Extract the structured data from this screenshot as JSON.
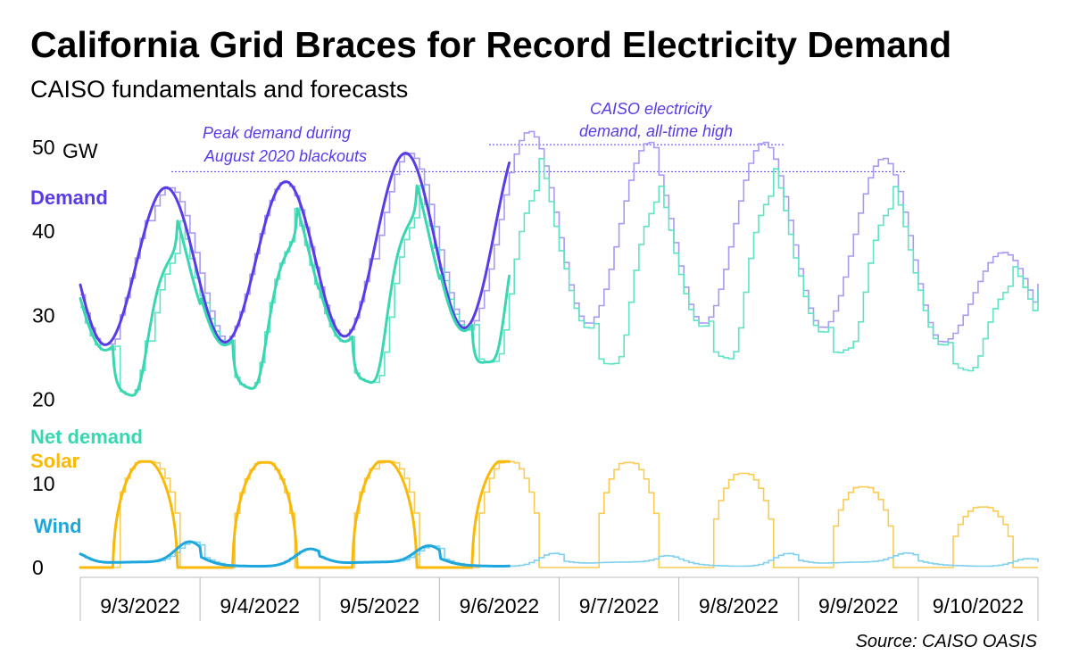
{
  "header": {
    "title": "California Grid Braces for Record Electricity Demand",
    "subtitle": "CAISO fundamentals and forecasts"
  },
  "source": "Source: CAISO OASIS",
  "annotations": {
    "blackout_line1": "Peak demand during",
    "blackout_line2": "August 2020 blackouts",
    "alltime_line1": "CAISO electricity",
    "alltime_line2": "demand, all-time high"
  },
  "chart_data": {
    "type": "line",
    "title": "California Grid Braces for Record Electricity Demand",
    "subtitle": "CAISO fundamentals and forecasts",
    "ylabel": "GW",
    "ylim": [
      0,
      52
    ],
    "yticks": [
      {
        "value": 50,
        "label": "50"
      },
      {
        "value": 40,
        "label": "40"
      },
      {
        "value": 30,
        "label": "30"
      },
      {
        "value": 20,
        "label": "20"
      },
      {
        "value": 10,
        "label": "10"
      },
      {
        "value": 0,
        "label": "0"
      }
    ],
    "y_unit_label": "GW",
    "xlim": [
      "9/3/2022",
      "9/11/2022"
    ],
    "categories": [
      "9/3/2022",
      "9/4/2022",
      "9/5/2022",
      "9/6/2022",
      "9/7/2022",
      "9/8/2022",
      "9/9/2022",
      "9/10/2022"
    ],
    "reference_lines": [
      {
        "name": "Peak demand during August 2020 blackouts",
        "value": 47.1
      },
      {
        "name": "CAISO electricity demand, all-time high",
        "value": 50.3
      }
    ],
    "actuals_through": "9/6/2022 14:00",
    "daily": [
      {
        "date": "9/3/2022",
        "demand_min": 26.5,
        "demand_peak": 45.2,
        "net_min": 18.5,
        "net_peak": 41.0,
        "solar_peak": 12.6,
        "wind_peak": 3.0
      },
      {
        "date": "9/4/2022",
        "demand_min": 26.8,
        "demand_peak": 45.9,
        "net_min": 19.2,
        "net_peak": 41.0,
        "solar_peak": 12.5,
        "wind_peak": 2.3
      },
      {
        "date": "9/5/2022",
        "demand_min": 27.5,
        "demand_peak": 49.3,
        "net_min": 19.6,
        "net_peak": 47.0,
        "solar_peak": 12.6,
        "wind_peak": 2.5
      },
      {
        "date": "9/6/2022",
        "demand_min": 28.5,
        "demand_peak": 51.9,
        "net_min": 22.3,
        "net_peak": 46.0,
        "solar_peak": 12.6,
        "wind_peak": 1.8
      },
      {
        "date": "9/7/2022",
        "demand_min": 29.0,
        "demand_peak": 50.6,
        "net_min": 22.3,
        "net_peak": 45.5,
        "solar_peak": 12.5,
        "wind_peak": 1.3
      },
      {
        "date": "9/8/2022",
        "demand_min": 29.0,
        "demand_peak": 50.6,
        "net_min": 22.3,
        "net_peak": 45.5,
        "solar_peak": 11.2,
        "wind_peak": 1.8
      },
      {
        "date": "9/9/2022",
        "demand_min": 28.5,
        "demand_peak": 48.7,
        "net_min": 24.5,
        "net_peak": 43.5,
        "solar_peak": 9.6,
        "wind_peak": 1.6
      },
      {
        "date": "9/10/2022",
        "demand_min": 26.8,
        "demand_peak": 37.5,
        "net_min": 22.2,
        "net_peak": 34.8,
        "solar_peak": 7.2,
        "wind_peak": 1.2
      }
    ],
    "series": [
      {
        "name": "Demand",
        "color": "#5a3be6",
        "forecast_color": "#a99af0"
      },
      {
        "name": "Net demand",
        "color": "#3ad6b2",
        "forecast_color": "#5fe3c4"
      },
      {
        "name": "Solar",
        "color": "#f8b90a",
        "forecast_color": "#f8cc55"
      },
      {
        "name": "Wind",
        "color": "#1ea7dc",
        "forecast_color": "#7fd0ee"
      }
    ]
  }
}
